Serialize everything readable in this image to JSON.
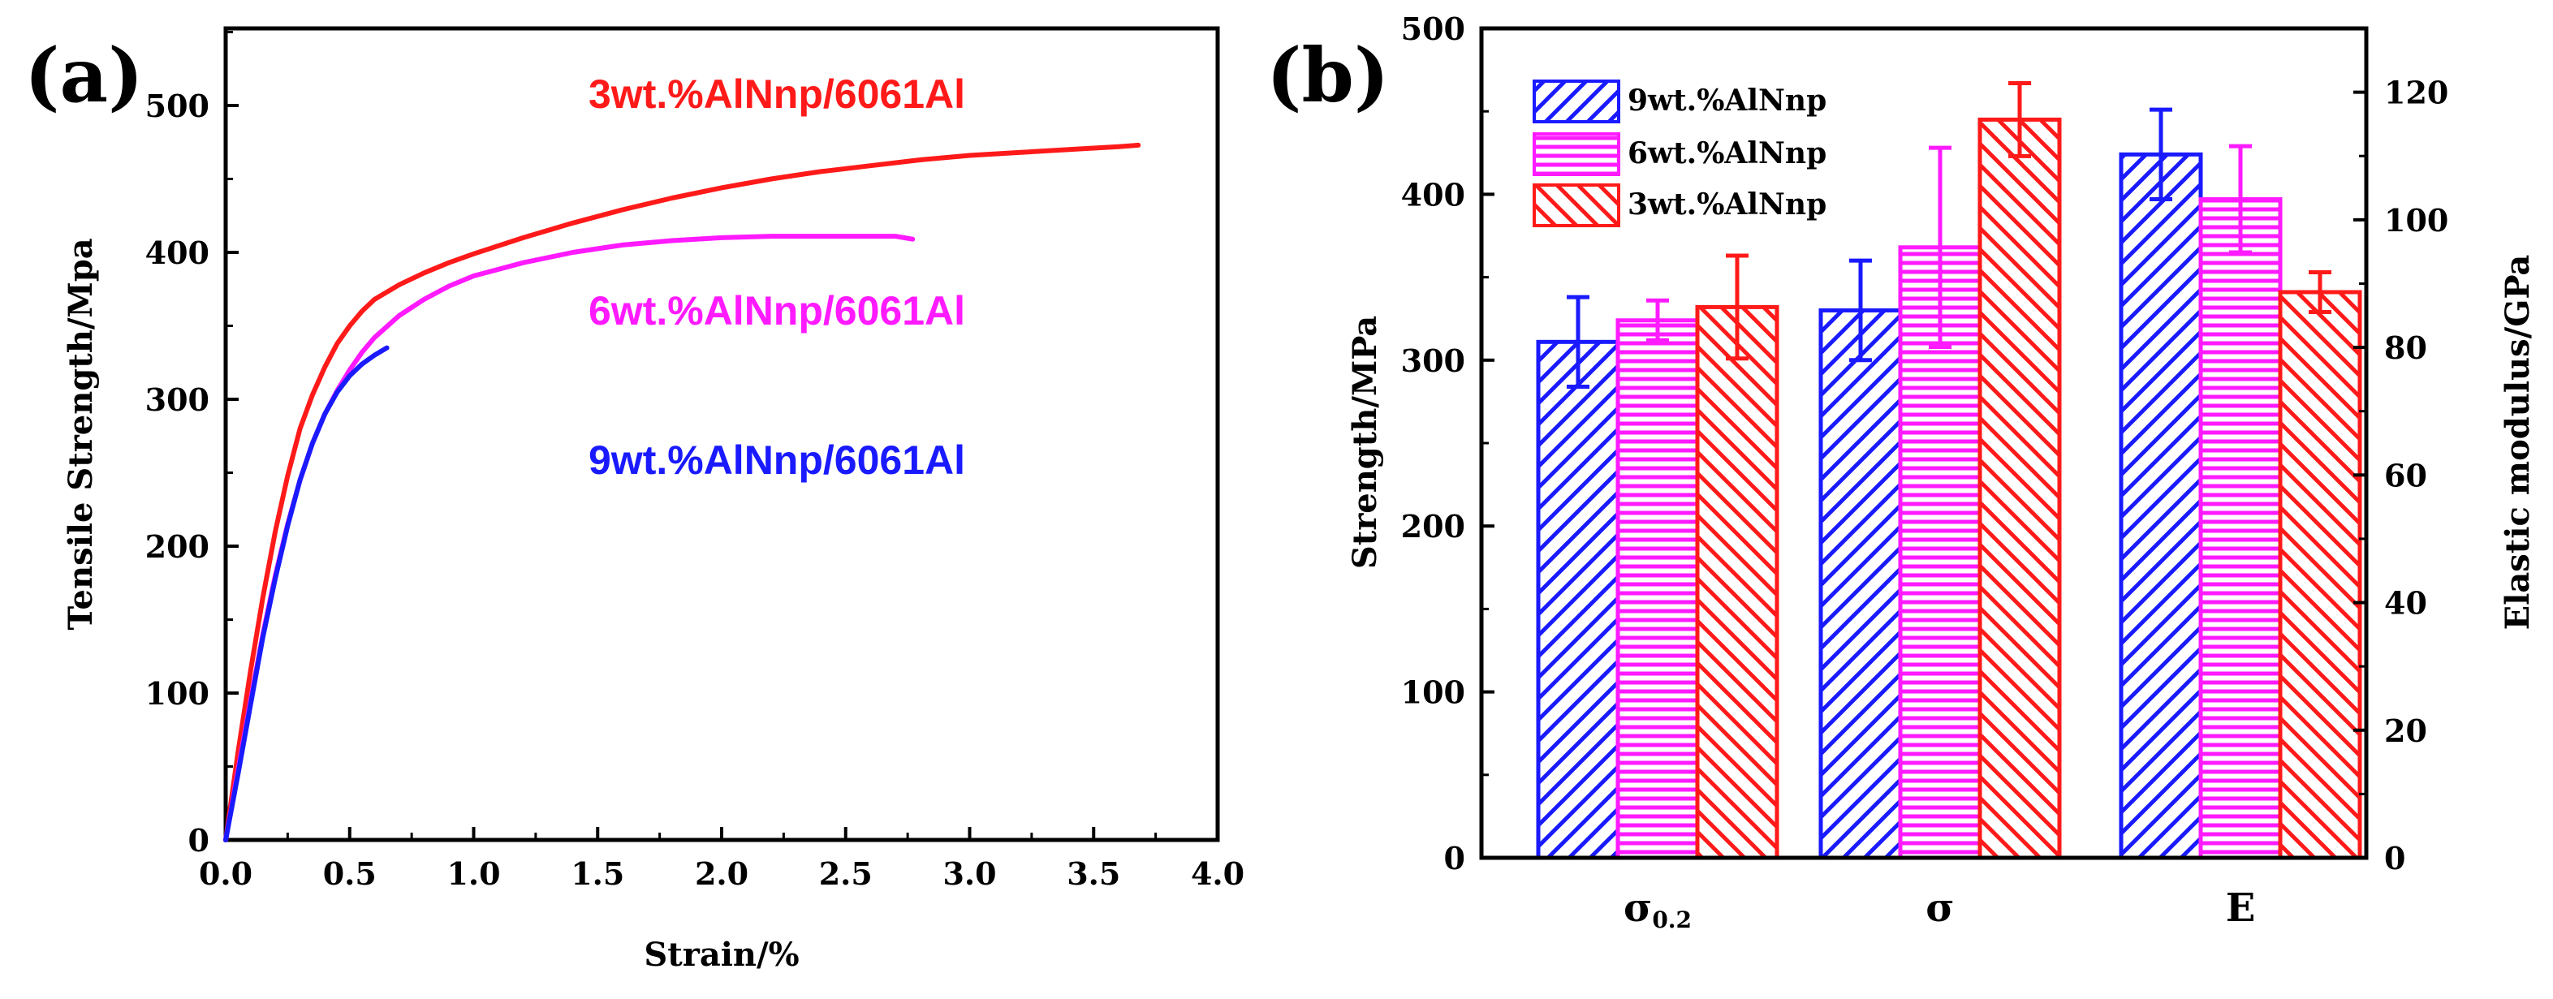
{
  "colors": {
    "red": "#ff1a1a",
    "magenta": "#ff1aff",
    "blue": "#1a1aff",
    "axis": "#000000"
  },
  "chart_data": [
    {
      "panel": "(a)",
      "type": "line",
      "xlabel": "Strain/%",
      "ylabel": "Tensile Strength/Mpa",
      "xlim": [
        0.0,
        4.0
      ],
      "ylim": [
        0,
        550
      ],
      "xticks": [
        "0.0",
        "0.5",
        "1.0",
        "1.5",
        "2.0",
        "2.5",
        "3.0",
        "3.5",
        "4.0"
      ],
      "yticks": [
        "0",
        "100",
        "200",
        "300",
        "400",
        "500"
      ],
      "series": [
        {
          "name": "3wt.%AlNnp/6061Al",
          "color": "red",
          "x": [
            0,
            0.05,
            0.1,
            0.15,
            0.2,
            0.25,
            0.3,
            0.35,
            0.4,
            0.45,
            0.5,
            0.55,
            0.6,
            0.7,
            0.8,
            0.9,
            1.0,
            1.2,
            1.4,
            1.6,
            1.8,
            2.0,
            2.2,
            2.4,
            2.6,
            2.8,
            3.0,
            3.2,
            3.4,
            3.6,
            3.68
          ],
          "y": [
            0,
            60,
            115,
            165,
            210,
            248,
            280,
            303,
            322,
            338,
            350,
            360,
            368,
            378,
            386,
            393,
            399,
            410,
            420,
            429,
            437,
            444,
            450,
            455,
            459,
            463,
            466,
            468,
            470,
            472,
            473
          ]
        },
        {
          "name": "6wt.%AlNnp/6061Al",
          "color": "magenta",
          "x": [
            0,
            0.05,
            0.1,
            0.15,
            0.2,
            0.25,
            0.3,
            0.35,
            0.4,
            0.45,
            0.5,
            0.55,
            0.6,
            0.7,
            0.8,
            0.9,
            1.0,
            1.2,
            1.4,
            1.6,
            1.8,
            2.0,
            2.2,
            2.4,
            2.6,
            2.7,
            2.77
          ],
          "y": [
            0,
            48,
            95,
            140,
            180,
            215,
            245,
            270,
            290,
            306,
            320,
            332,
            342,
            357,
            368,
            377,
            384,
            393,
            400,
            405,
            408,
            410,
            411,
            411,
            411,
            411,
            409
          ]
        },
        {
          "name": "9wt.%AlNnp/6061Al",
          "color": "blue",
          "x": [
            0,
            0.05,
            0.1,
            0.15,
            0.2,
            0.25,
            0.3,
            0.35,
            0.4,
            0.45,
            0.5,
            0.55,
            0.6,
            0.65
          ],
          "y": [
            0,
            45,
            92,
            138,
            178,
            214,
            245,
            270,
            290,
            305,
            316,
            324,
            330,
            335
          ]
        }
      ]
    },
    {
      "panel": "(b)",
      "type": "bar",
      "categories": [
        "σ0.2",
        "σ",
        "E"
      ],
      "category_labels": [
        {
          "main": "σ",
          "sub": "0.2"
        },
        {
          "main": "σ",
          "sub": ""
        },
        {
          "main": "E",
          "sub": ""
        }
      ],
      "ylabel": "Strength/MPa",
      "ylabel_right": "Elastic modulus/GPa",
      "ylim": [
        0,
        500
      ],
      "ylim_right": [
        0,
        130
      ],
      "yticks": [
        "0",
        "100",
        "200",
        "300",
        "400",
        "500"
      ],
      "yticks_right": [
        "0",
        "20",
        "40",
        "60",
        "80",
        "100",
        "120"
      ],
      "legend": [
        "9wt.%AlNnp",
        "6wt.%AlNnp",
        "3wt.%AlNnp"
      ],
      "series": [
        {
          "name": "9wt.%AlNnp",
          "color": "blue",
          "pattern": "diag-right",
          "values": [
            311,
            330,
            424
          ],
          "errors": [
            27,
            30,
            27
          ]
        },
        {
          "name": "6wt.%AlNnp",
          "color": "magenta",
          "pattern": "horizontal",
          "values": [
            324,
            368,
            397
          ],
          "errors": [
            12,
            60,
            32
          ]
        },
        {
          "name": "3wt.%AlNnp",
          "color": "red",
          "pattern": "diag-left",
          "values": [
            332,
            445,
            341
          ],
          "errors": [
            31,
            22,
            12
          ]
        }
      ]
    }
  ]
}
